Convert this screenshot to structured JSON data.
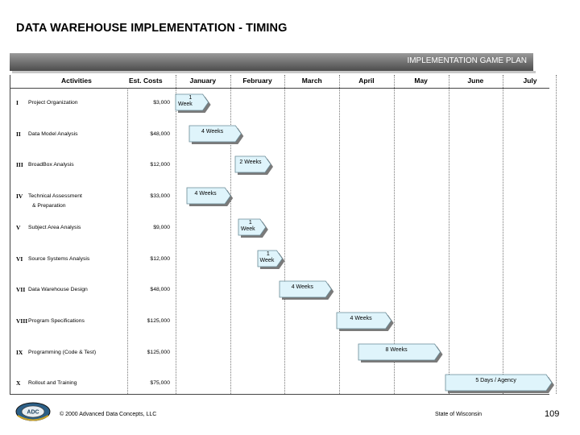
{
  "page": {
    "title": "DATA WAREHOUSE IMPLEMENTATION - TIMING",
    "banner": "IMPLEMENTATION GAME PLAN"
  },
  "columns": {
    "activities": "Activities",
    "costs": "Est. Costs",
    "months": [
      "January",
      "February",
      "March",
      "April",
      "May",
      "June",
      "July"
    ]
  },
  "rows": [
    {
      "roman": "I",
      "activity": "Project Organization",
      "activity2": "",
      "cost": "$3,000",
      "bar_label": "1 Week",
      "bar_label_lines": [
        "1",
        "Week"
      ],
      "start_month": 0.0,
      "end_month": 0.6
    },
    {
      "roman": "II",
      "activity": "Data Model Analysis",
      "activity2": "",
      "cost": "$48,000",
      "bar_label": "4 Weeks",
      "bar_label_lines": [
        "4 Weeks"
      ],
      "start_month": 0.25,
      "end_month": 1.2
    },
    {
      "roman": "III",
      "activity": "BroadBox Analysis",
      "activity2": "",
      "cost": "$12,000",
      "bar_label": "2 Weeks",
      "bar_label_lines": [
        "2 Weeks"
      ],
      "start_month": 1.1,
      "end_month": 1.75
    },
    {
      "roman": "IV",
      "activity": "Technical Assessment",
      "activity2": "& Preparation",
      "cost": "$33,000",
      "bar_label": "4 Weeks",
      "bar_label_lines": [
        "4 Weeks"
      ],
      "start_month": 0.2,
      "end_month": 1.0
    },
    {
      "roman": "V",
      "activity": "Subject Area Analysis",
      "activity2": "",
      "cost": "$9,000",
      "bar_label": "1 Week",
      "bar_label_lines": [
        "1",
        "Week"
      ],
      "start_month": 1.15,
      "end_month": 1.65
    },
    {
      "roman": "VI",
      "activity": "Source Systems Analysis",
      "activity2": "",
      "cost": "$12,000",
      "bar_label": "1 Week",
      "bar_label_lines": [
        "1",
        "Week"
      ],
      "start_month": 1.5,
      "end_month": 1.95
    },
    {
      "roman": "VII",
      "activity": "Data Warehouse Design",
      "activity2": "",
      "cost": "$48,000",
      "bar_label": "4 Weeks",
      "bar_label_lines": [
        "4 Weeks"
      ],
      "start_month": 1.9,
      "end_month": 2.85
    },
    {
      "roman": "VIII",
      "activity": "Program Specifications",
      "activity2": "",
      "cost": "$125,000",
      "bar_label": "4 Weeks",
      "bar_label_lines": [
        "4 Weeks"
      ],
      "start_month": 2.95,
      "end_month": 3.95
    },
    {
      "roman": "IX",
      "activity": "Programming (Code & Test)",
      "activity2": "",
      "cost": "$125,000",
      "bar_label": "8 Weeks",
      "bar_label_lines": [
        "8 Weeks"
      ],
      "start_month": 3.35,
      "end_month": 4.85
    },
    {
      "roman": "X",
      "activity": "Rollout and Training",
      "activity2": "",
      "cost": "$75,000",
      "bar_label": "5 Days / Agency",
      "bar_label_lines": [
        "5 Days / Agency"
      ],
      "start_month": 4.95,
      "end_month": 6.9
    }
  ],
  "footer": {
    "logo_text": "ADC",
    "copyright": "© 2000 Advanced Data Concepts, LLC",
    "state": "State of Wisconsin",
    "page_number": "109"
  },
  "colors": {
    "bar_fill": "#dff4fb",
    "bar_stroke": "#6a8a96",
    "bar_shadow": "#7a7a7a",
    "banner": "#6e6e6e"
  }
}
